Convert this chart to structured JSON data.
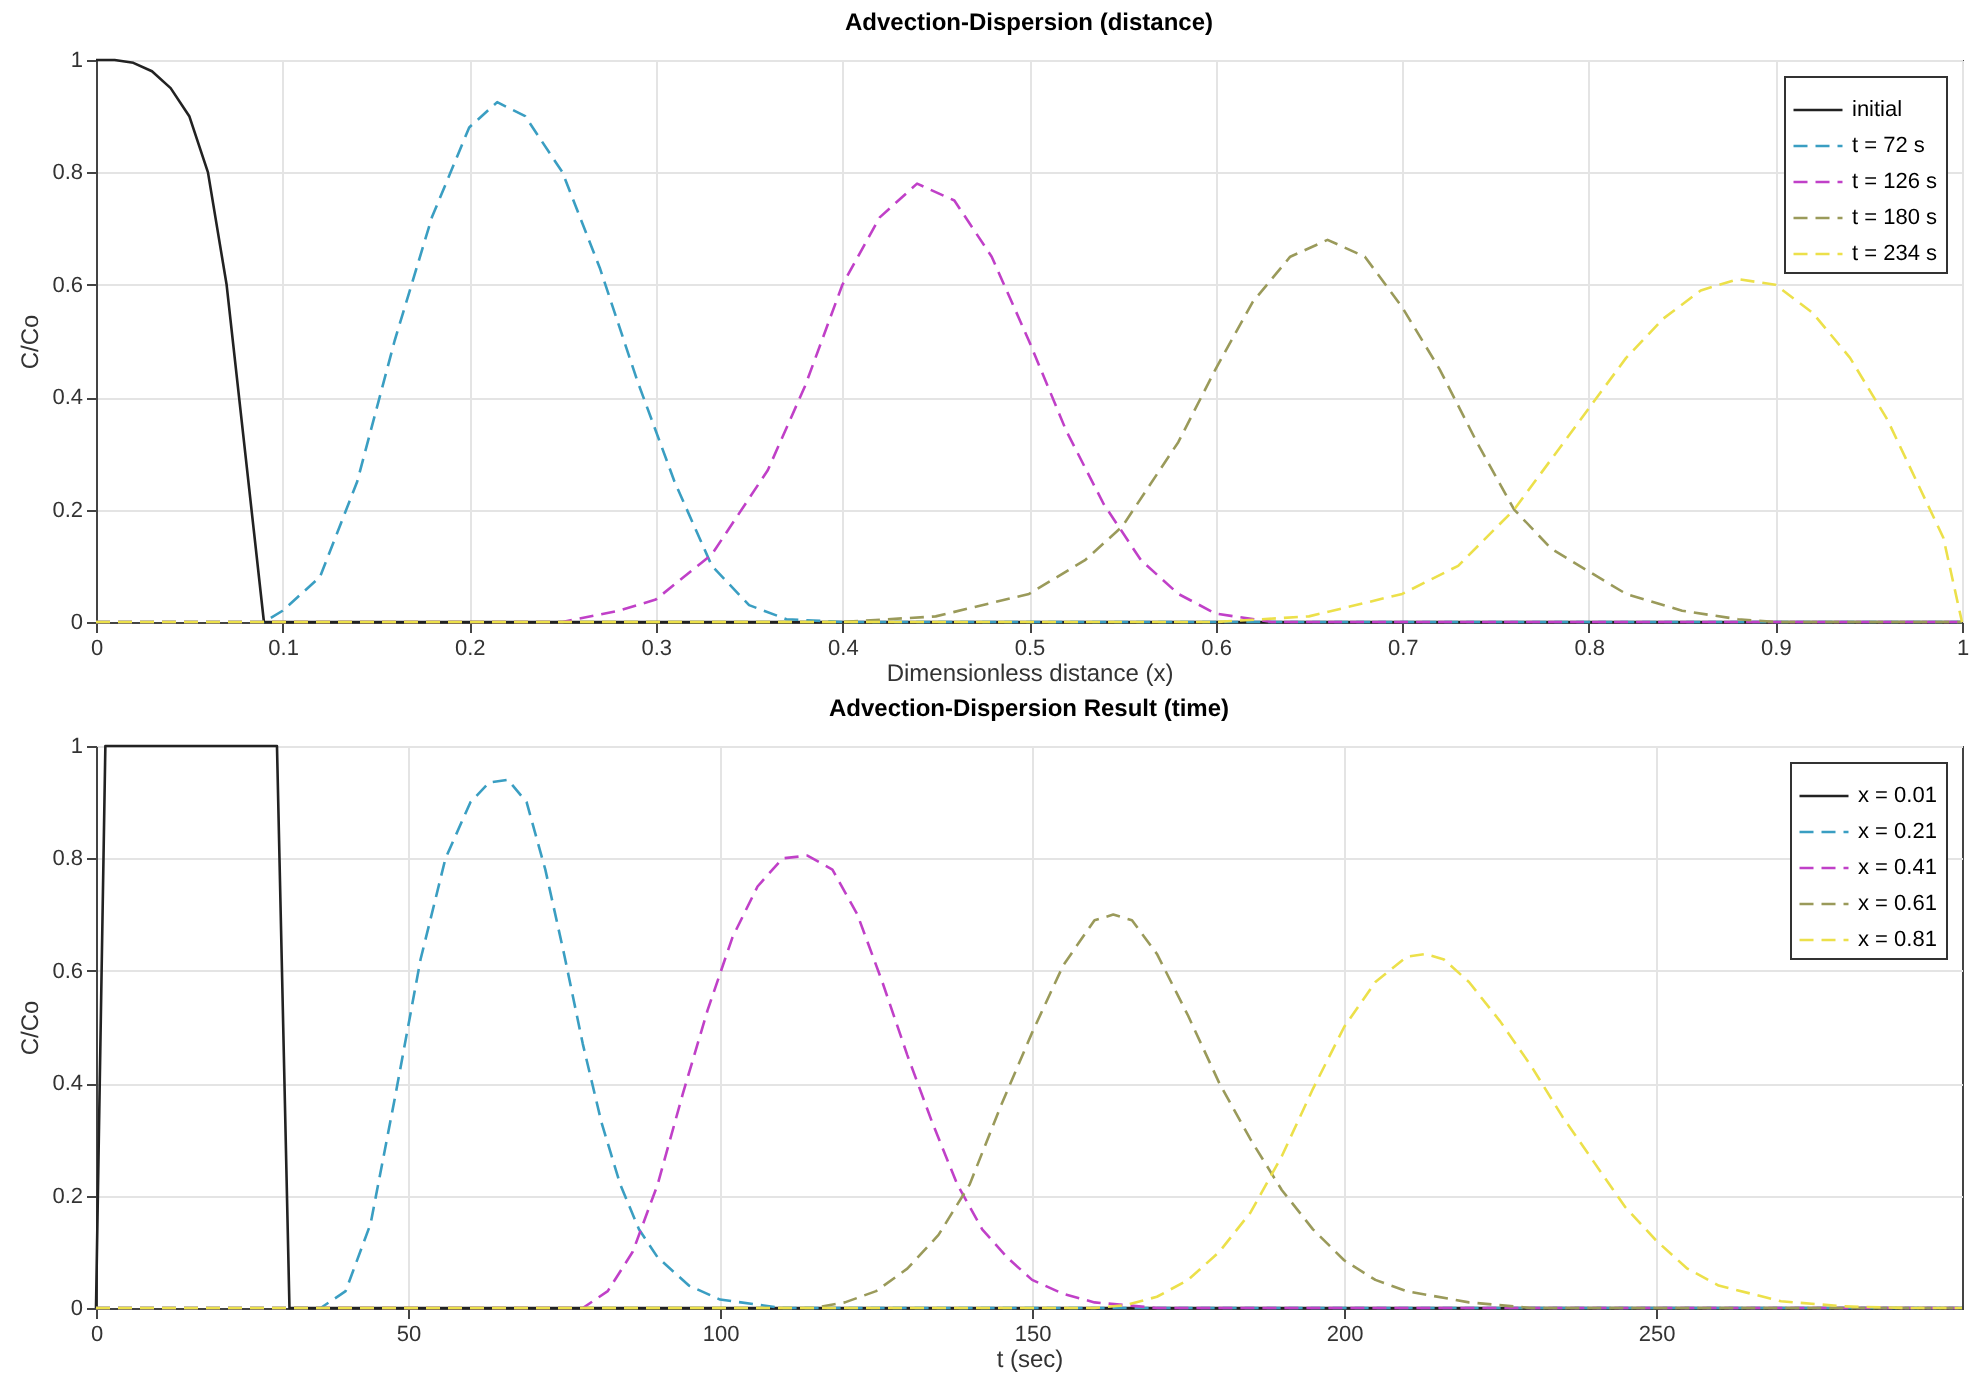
{
  "chart_data": [
    {
      "type": "line",
      "title": "Advection-Dispersion (distance)",
      "xlabel": "Dimensionless distance (x)",
      "ylabel": "C/Co",
      "xlim": [
        0,
        1
      ],
      "xticks": [
        0,
        0.1,
        0.2,
        0.3,
        0.4,
        0.5,
        0.6,
        0.7,
        0.8,
        0.9,
        1
      ],
      "ylim": [
        0,
        1
      ],
      "yticks": [
        0,
        0.2,
        0.4,
        0.6,
        0.8,
        1
      ],
      "grid": true,
      "legend": "top right",
      "series": [
        {
          "name": "initial",
          "color": "#222222",
          "line_style": "solid",
          "x": [
            0,
            0.01,
            0.02,
            0.03,
            0.04,
            0.05,
            0.06,
            0.07,
            0.08,
            0.09,
            0.1,
            1
          ],
          "values": [
            1,
            1,
            0.995,
            0.98,
            0.95,
            0.9,
            0.8,
            0.6,
            0.3,
            0,
            0,
            0
          ]
        },
        {
          "name": "t = 72 s",
          "color": "#3a9ec2",
          "line_style": "dashed",
          "x": [
            0,
            0.09,
            0.1,
            0.12,
            0.14,
            0.16,
            0.18,
            0.2,
            0.215,
            0.23,
            0.25,
            0.27,
            0.29,
            0.31,
            0.33,
            0.35,
            0.37,
            0.4,
            1
          ],
          "values": [
            0,
            0,
            0.02,
            0.08,
            0.25,
            0.5,
            0.72,
            0.88,
            0.925,
            0.9,
            0.8,
            0.63,
            0.43,
            0.25,
            0.1,
            0.03,
            0.005,
            0,
            0
          ]
        },
        {
          "name": "t = 126 s",
          "color": "#c040c8",
          "line_style": "dashed",
          "x": [
            0,
            0.25,
            0.28,
            0.3,
            0.33,
            0.36,
            0.38,
            0.4,
            0.42,
            0.44,
            0.46,
            0.48,
            0.5,
            0.52,
            0.54,
            0.56,
            0.58,
            0.6,
            0.63,
            1
          ],
          "values": [
            0,
            0,
            0.02,
            0.04,
            0.12,
            0.27,
            0.42,
            0.6,
            0.72,
            0.78,
            0.75,
            0.65,
            0.5,
            0.34,
            0.21,
            0.11,
            0.05,
            0.015,
            0,
            0
          ]
        },
        {
          "name": "t = 180 s",
          "color": "#9a9a5a",
          "line_style": "dashed",
          "x": [
            0,
            0.4,
            0.45,
            0.5,
            0.53,
            0.55,
            0.58,
            0.6,
            0.62,
            0.64,
            0.66,
            0.68,
            0.7,
            0.72,
            0.74,
            0.76,
            0.78,
            0.8,
            0.82,
            0.85,
            0.88,
            0.9,
            1
          ],
          "values": [
            0,
            0,
            0.01,
            0.05,
            0.11,
            0.17,
            0.32,
            0.45,
            0.57,
            0.65,
            0.68,
            0.65,
            0.56,
            0.45,
            0.32,
            0.2,
            0.13,
            0.09,
            0.05,
            0.02,
            0.005,
            0,
            0
          ]
        },
        {
          "name": "t = 234 s",
          "color": "#ece04a",
          "line_style": "dashed",
          "x": [
            0,
            0.6,
            0.65,
            0.7,
            0.73,
            0.76,
            0.78,
            0.8,
            0.82,
            0.84,
            0.86,
            0.88,
            0.9,
            0.92,
            0.94,
            0.96,
            0.98,
            0.99,
            1
          ],
          "values": [
            0,
            0,
            0.01,
            0.05,
            0.1,
            0.2,
            0.29,
            0.38,
            0.47,
            0.54,
            0.59,
            0.61,
            0.6,
            0.55,
            0.47,
            0.36,
            0.22,
            0.15,
            0
          ]
        }
      ]
    },
    {
      "type": "line",
      "title": "Advection-Dispersion Result (time)",
      "xlabel": "t (sec)",
      "ylabel": "C/Co",
      "xlim": [
        0,
        299
      ],
      "xticks": [
        0,
        50,
        100,
        150,
        200,
        250
      ],
      "ylim": [
        0,
        1
      ],
      "yticks": [
        0,
        0.2,
        0.4,
        0.6,
        0.8,
        1
      ],
      "grid": true,
      "legend": "top right",
      "series": [
        {
          "name": "x = 0.01",
          "color": "#222222",
          "line_style": "solid",
          "x": [
            0,
            1.5,
            29,
            31,
            299
          ],
          "values": [
            0,
            1,
            1,
            0,
            0
          ]
        },
        {
          "name": "x = 0.21",
          "color": "#3a9ec2",
          "line_style": "dashed",
          "x": [
            0,
            36,
            40,
            44,
            48,
            52,
            56,
            60,
            63,
            66,
            69,
            72,
            75,
            78,
            81,
            84,
            87,
            90,
            95,
            100,
            110,
            299
          ],
          "values": [
            0,
            0,
            0.03,
            0.15,
            0.38,
            0.62,
            0.8,
            0.9,
            0.935,
            0.94,
            0.9,
            0.78,
            0.63,
            0.47,
            0.33,
            0.22,
            0.14,
            0.09,
            0.04,
            0.015,
            0,
            0
          ]
        },
        {
          "name": "x = 0.41",
          "color": "#c040c8",
          "line_style": "dashed",
          "x": [
            0,
            78,
            82,
            86,
            90,
            94,
            98,
            102,
            106,
            110,
            114,
            118,
            122,
            126,
            130,
            134,
            138,
            142,
            146,
            150,
            155,
            160,
            170,
            299
          ],
          "values": [
            0,
            0,
            0.03,
            0.1,
            0.22,
            0.38,
            0.53,
            0.66,
            0.75,
            0.8,
            0.805,
            0.78,
            0.7,
            0.58,
            0.45,
            0.33,
            0.22,
            0.14,
            0.09,
            0.05,
            0.025,
            0.01,
            0,
            0
          ]
        },
        {
          "name": "x = 0.61",
          "color": "#9a9a5a",
          "line_style": "dashed",
          "x": [
            0,
            115,
            120,
            125,
            130,
            135,
            140,
            145,
            150,
            155,
            160,
            163,
            166,
            170,
            175,
            180,
            185,
            190,
            195,
            200,
            205,
            210,
            220,
            230,
            299
          ],
          "values": [
            0,
            0,
            0.01,
            0.03,
            0.07,
            0.13,
            0.22,
            0.36,
            0.49,
            0.61,
            0.69,
            0.7,
            0.69,
            0.63,
            0.52,
            0.4,
            0.3,
            0.21,
            0.14,
            0.085,
            0.05,
            0.03,
            0.01,
            0,
            0
          ]
        },
        {
          "name": "x = 0.81",
          "color": "#ece04a",
          "line_style": "dashed",
          "x": [
            0,
            160,
            165,
            170,
            175,
            180,
            185,
            190,
            195,
            200,
            205,
            210,
            213,
            216,
            220,
            225,
            230,
            235,
            240,
            245,
            250,
            255,
            260,
            270,
            280,
            290,
            299
          ],
          "values": [
            0,
            0,
            0.005,
            0.02,
            0.05,
            0.1,
            0.17,
            0.27,
            0.39,
            0.5,
            0.58,
            0.625,
            0.63,
            0.62,
            0.58,
            0.51,
            0.43,
            0.34,
            0.26,
            0.18,
            0.12,
            0.07,
            0.04,
            0.012,
            0.003,
            0,
            0
          ]
        }
      ]
    }
  ]
}
